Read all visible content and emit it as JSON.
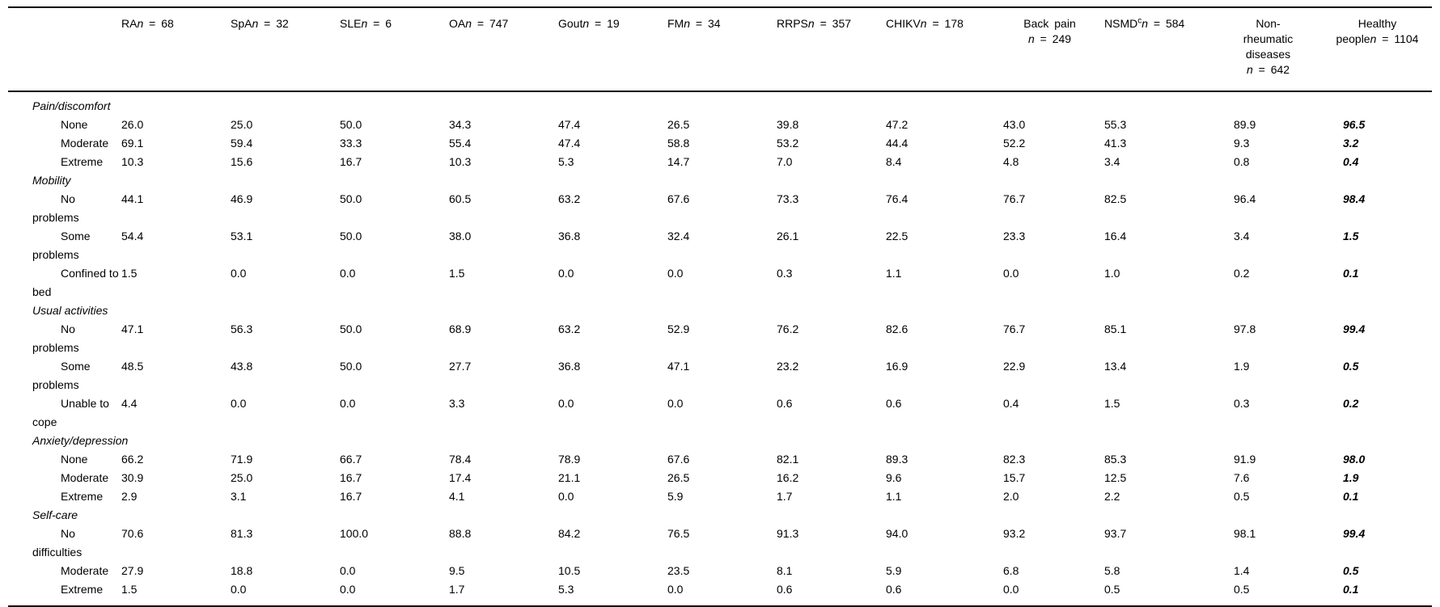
{
  "table": {
    "columns": [
      {
        "name_lines": [
          "RA"
        ],
        "n": "68",
        "n_own_line": false
      },
      {
        "name_lines": [
          "SpA"
        ],
        "n": "32",
        "n_own_line": false
      },
      {
        "name_lines": [
          "SLE"
        ],
        "n": "6",
        "n_own_line": false
      },
      {
        "name_lines": [
          "OA"
        ],
        "n": "747",
        "n_own_line": false
      },
      {
        "name_lines": [
          "Gout"
        ],
        "n": "19",
        "n_own_line": false
      },
      {
        "name_lines": [
          "FM"
        ],
        "n": "34",
        "n_own_line": false
      },
      {
        "name_lines": [
          "RRPS"
        ],
        "n": "357",
        "n_own_line": false
      },
      {
        "name_lines": [
          "CHIKV"
        ],
        "n": "178",
        "n_own_line": false
      },
      {
        "name_lines": [
          "Back pain"
        ],
        "n": "249",
        "n_own_line": true,
        "align": "center"
      },
      {
        "name_lines": [
          "NSMD"
        ],
        "sup": "c",
        "n": "584",
        "n_own_line": false
      },
      {
        "name_lines": [
          "Non-",
          "rheumatic",
          "diseases"
        ],
        "n": "642",
        "n_own_line": true,
        "align": "center"
      },
      {
        "name_lines": [
          "Healthy",
          "people"
        ],
        "n": "1104",
        "n_own_line": false,
        "align": "center",
        "strong": true
      }
    ],
    "sections": [
      {
        "title": "Pain/discomfort",
        "rows": [
          {
            "label": "None",
            "values": [
              "26.0",
              "25.0",
              "50.0",
              "34.3",
              "47.4",
              "26.5",
              "39.8",
              "47.2",
              "43.0",
              "55.3",
              "89.9",
              "96.5"
            ]
          },
          {
            "label": "Moderate",
            "values": [
              "69.1",
              "59.4",
              "33.3",
              "55.4",
              "47.4",
              "58.8",
              "53.2",
              "44.4",
              "52.2",
              "41.3",
              "9.3",
              "3.2"
            ]
          },
          {
            "label": "Extreme",
            "values": [
              "10.3",
              "15.6",
              "16.7",
              "10.3",
              "5.3",
              "14.7",
              "7.0",
              "8.4",
              "4.8",
              "3.4",
              "0.8",
              "0.4"
            ]
          }
        ]
      },
      {
        "title": "Mobility",
        "rows": [
          {
            "label": "No problems",
            "values": [
              "44.1",
              "46.9",
              "50.0",
              "60.5",
              "63.2",
              "67.6",
              "73.3",
              "76.4",
              "76.7",
              "82.5",
              "96.4",
              "98.4"
            ]
          },
          {
            "label": "Some problems",
            "values": [
              "54.4",
              "53.1",
              "50.0",
              "38.0",
              "36.8",
              "32.4",
              "26.1",
              "22.5",
              "23.3",
              "16.4",
              "3.4",
              "1.5"
            ]
          },
          {
            "label": "Confined to bed",
            "values": [
              "1.5",
              "0.0",
              "0.0",
              "1.5",
              "0.0",
              "0.0",
              "0.3",
              "1.1",
              "0.0",
              "1.0",
              "0.2",
              "0.1"
            ]
          }
        ]
      },
      {
        "title": "Usual activities",
        "rows": [
          {
            "label": "No problems",
            "values": [
              "47.1",
              "56.3",
              "50.0",
              "68.9",
              "63.2",
              "52.9",
              "76.2",
              "82.6",
              "76.7",
              "85.1",
              "97.8",
              "99.4"
            ]
          },
          {
            "label": "Some problems",
            "values": [
              "48.5",
              "43.8",
              "50.0",
              "27.7",
              "36.8",
              "47.1",
              "23.2",
              "16.9",
              "22.9",
              "13.4",
              "1.9",
              "0.5"
            ]
          },
          {
            "label": "Unable to cope",
            "values": [
              "4.4",
              "0.0",
              "0.0",
              "3.3",
              "0.0",
              "0.0",
              "0.6",
              "0.6",
              "0.4",
              "1.5",
              "0.3",
              "0.2"
            ]
          }
        ]
      },
      {
        "title": "Anxiety/depression",
        "rows": [
          {
            "label": "None",
            "values": [
              "66.2",
              "71.9",
              "66.7",
              "78.4",
              "78.9",
              "67.6",
              "82.1",
              "89.3",
              "82.3",
              "85.3",
              "91.9",
              "98.0"
            ]
          },
          {
            "label": "Moderate",
            "values": [
              "30.9",
              "25.0",
              "16.7",
              "17.4",
              "21.1",
              "26.5",
              "16.2",
              "9.6",
              "15.7",
              "12.5",
              "7.6",
              "1.9"
            ]
          },
          {
            "label": "Extreme",
            "values": [
              "2.9",
              "3.1",
              "16.7",
              "4.1",
              "0.0",
              "5.9",
              "1.7",
              "1.1",
              "2.0",
              "2.2",
              "0.5",
              "0.1"
            ]
          }
        ]
      },
      {
        "title": "Self-care",
        "rows": [
          {
            "label": "No difficulties",
            "values": [
              "70.6",
              "81.3",
              "100.0",
              "88.8",
              "84.2",
              "76.5",
              "91.3",
              "94.0",
              "93.2",
              "93.7",
              "98.1",
              "99.4"
            ]
          },
          {
            "label": "Moderate",
            "values": [
              "27.9",
              "18.8",
              "0.0",
              "9.5",
              "10.5",
              "23.5",
              "8.1",
              "5.9",
              "6.8",
              "5.8",
              "1.4",
              "0.5"
            ]
          },
          {
            "label": "Extreme",
            "values": [
              "1.5",
              "0.0",
              "0.0",
              "1.7",
              "5.3",
              "0.0",
              "0.6",
              "0.6",
              "0.0",
              "0.5",
              "0.5",
              "0.1"
            ]
          }
        ]
      }
    ]
  }
}
